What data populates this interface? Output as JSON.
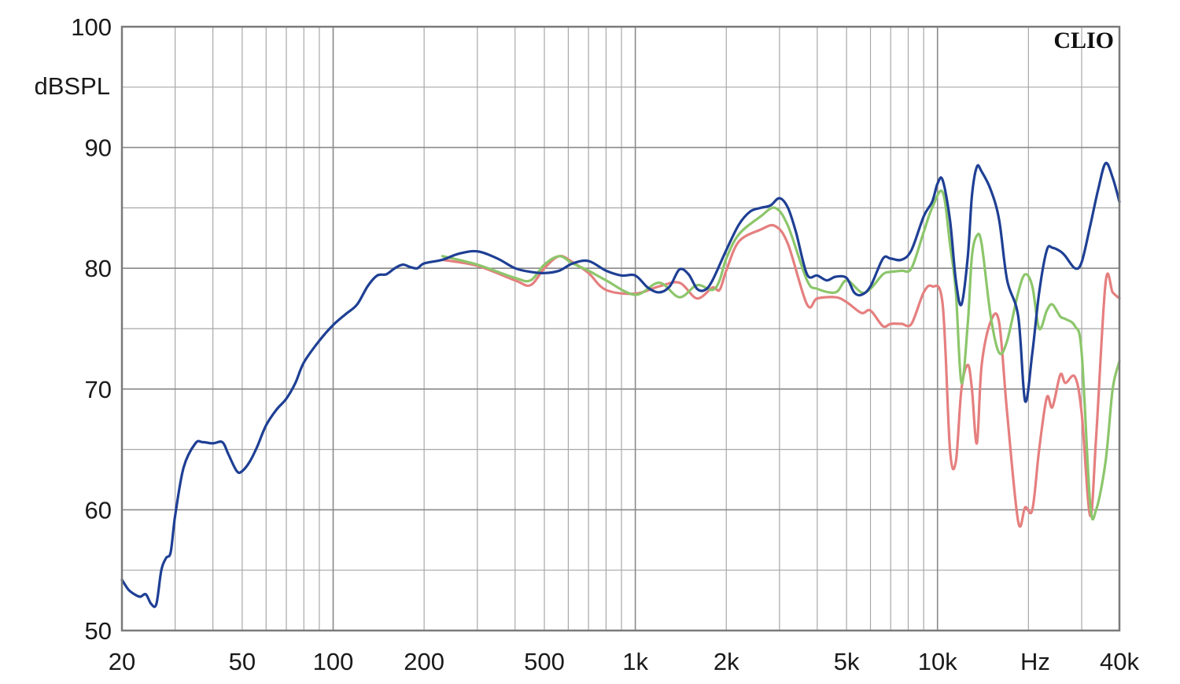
{
  "brand_label": "CLIO",
  "chart_data": {
    "type": "line",
    "title": "",
    "xlabel": "Hz",
    "ylabel": "dBSPL",
    "x_scale": "log",
    "xlim": [
      20,
      40000
    ],
    "ylim": [
      50,
      100
    ],
    "grid": true,
    "legend": "none",
    "x_ticks": [
      {
        "value": 20,
        "label": "20"
      },
      {
        "value": 50,
        "label": "50"
      },
      {
        "value": 100,
        "label": "100"
      },
      {
        "value": 200,
        "label": "200"
      },
      {
        "value": 500,
        "label": "500"
      },
      {
        "value": 1000,
        "label": "1k"
      },
      {
        "value": 2000,
        "label": "2k"
      },
      {
        "value": 5000,
        "label": "5k"
      },
      {
        "value": 10000,
        "label": "10k"
      },
      {
        "value": 40000,
        "label": "40k"
      }
    ],
    "y_ticks": [
      {
        "value": 50,
        "label": "50"
      },
      {
        "value": 60,
        "label": "60"
      },
      {
        "value": 70,
        "label": "70"
      },
      {
        "value": 80,
        "label": "80"
      },
      {
        "value": 90,
        "label": "90"
      },
      {
        "value": 100,
        "label": "100"
      }
    ],
    "series": [
      {
        "color": "#e57f7f",
        "x": [
          230,
          300,
          400,
          450,
          500,
          560,
          620,
          700,
          800,
          1000,
          1200,
          1400,
          1600,
          1800,
          1900,
          2000,
          2200,
          2600,
          2900,
          3200,
          3700,
          4000,
          4600,
          5000,
          5600,
          6000,
          6600,
          7000,
          7600,
          8200,
          9000,
          9600,
          10400,
          11000,
          11500,
          12000,
          12600,
          13000,
          13500,
          14000,
          15000,
          16000,
          17000,
          18500,
          19500,
          20600,
          21700,
          23000,
          24000,
          25500,
          26500,
          28500,
          30000,
          32000,
          33500,
          36000,
          38000,
          40000
        ],
        "y": [
          80.7,
          80.2,
          79.0,
          78.6,
          80.0,
          81.0,
          80.5,
          79.6,
          78.2,
          77.9,
          78.5,
          78.8,
          77.5,
          78.4,
          78.2,
          79.8,
          82.2,
          83.2,
          83.5,
          82.0,
          77.0,
          77.5,
          77.6,
          77.2,
          76.3,
          76.5,
          75.2,
          75.4,
          75.4,
          75.4,
          78.0,
          78.5,
          77.0,
          65.0,
          64.0,
          70.0,
          72.0,
          70.0,
          65.5,
          72.0,
          75.6,
          75.5,
          68.0,
          59.0,
          60.2,
          60.0,
          65.0,
          69.3,
          68.5,
          71.2,
          70.5,
          71.0,
          68.0,
          59.5,
          66.0,
          78.8,
          78.0,
          77.5
        ]
      },
      {
        "color": "#8cc66b",
        "x": [
          230,
          300,
          400,
          450,
          500,
          560,
          620,
          700,
          800,
          1000,
          1200,
          1400,
          1600,
          1800,
          1900,
          2000,
          2200,
          2600,
          2900,
          3200,
          3700,
          4000,
          4600,
          5000,
          5600,
          6000,
          6600,
          7000,
          7600,
          8200,
          9000,
          9600,
          10400,
          11000,
          11500,
          12000,
          12600,
          13000,
          13500,
          14000,
          15000,
          16000,
          17000,
          18500,
          19500,
          20600,
          21700,
          23000,
          24000,
          25500,
          26500,
          28500,
          30000,
          32000,
          33500,
          36000,
          38000,
          40000
        ],
        "y": [
          81.0,
          80.3,
          79.2,
          79.0,
          80.3,
          81.0,
          80.4,
          79.8,
          79.0,
          77.8,
          78.8,
          77.6,
          78.6,
          78.2,
          79.0,
          80.8,
          82.8,
          84.3,
          85.0,
          83.5,
          79.0,
          78.3,
          78.0,
          79.0,
          78.0,
          78.3,
          79.5,
          79.7,
          79.8,
          80.0,
          83.0,
          85.0,
          86.3,
          82.0,
          78.0,
          70.5,
          75.5,
          81.0,
          82.7,
          82.0,
          76.0,
          73.0,
          74.0,
          78.0,
          79.5,
          78.5,
          75.0,
          76.5,
          77.0,
          76.0,
          75.8,
          75.2,
          73.0,
          60.5,
          60.0,
          64.0,
          70.0,
          72.3
        ]
      },
      {
        "color": "#1e3f94",
        "x": [
          20,
          21,
          22,
          23,
          24,
          25,
          26,
          27,
          28,
          29,
          30,
          32,
          35,
          37,
          40,
          43,
          45,
          48,
          50,
          53,
          56,
          60,
          65,
          70,
          75,
          80,
          90,
          100,
          110,
          120,
          130,
          140,
          150,
          160,
          170,
          180,
          190,
          200,
          230,
          260,
          300,
          350,
          400,
          450,
          500,
          560,
          620,
          700,
          800,
          900,
          1000,
          1100,
          1200,
          1300,
          1400,
          1500,
          1600,
          1700,
          1800,
          2000,
          2200,
          2400,
          2600,
          2800,
          3000,
          3200,
          3400,
          3700,
          4000,
          4300,
          4600,
          5000,
          5300,
          5600,
          6000,
          6600,
          7000,
          7600,
          8200,
          9000,
          9600,
          10000,
          10400,
          11000,
          11500,
          12000,
          12600,
          13000,
          13500,
          14000,
          15000,
          16000,
          17000,
          18500,
          19500,
          20600,
          21700,
          23000,
          24000,
          25500,
          26500,
          28500,
          30000,
          32000,
          34000,
          36000,
          38000,
          40000
        ],
        "y": [
          54.2,
          53.4,
          53.0,
          52.8,
          53.0,
          52.2,
          52.2,
          55.0,
          56.0,
          56.5,
          59.5,
          63.5,
          65.5,
          65.6,
          65.5,
          65.6,
          64.6,
          63.2,
          63.2,
          64.0,
          65.2,
          67.0,
          68.3,
          69.2,
          70.5,
          72.2,
          74.0,
          75.3,
          76.2,
          77.0,
          78.5,
          79.4,
          79.5,
          80.0,
          80.3,
          80.1,
          80.0,
          80.4,
          80.7,
          81.2,
          81.4,
          80.8,
          80.0,
          79.7,
          79.6,
          79.8,
          80.4,
          80.6,
          79.8,
          79.4,
          79.4,
          78.4,
          78.0,
          78.5,
          79.9,
          79.5,
          78.3,
          78.2,
          79.0,
          81.5,
          83.6,
          84.7,
          85.0,
          85.2,
          85.8,
          85.0,
          83.0,
          79.5,
          79.4,
          79.0,
          79.3,
          79.2,
          78.0,
          77.8,
          78.5,
          80.8,
          80.8,
          80.7,
          81.5,
          84.3,
          85.5,
          87.0,
          87.3,
          84.0,
          79.0,
          77.0,
          81.0,
          86.0,
          88.4,
          88.0,
          86.5,
          84.0,
          79.0,
          76.0,
          69.0,
          73.0,
          78.0,
          81.5,
          81.7,
          81.4,
          81.0,
          80.0,
          80.5,
          83.5,
          86.5,
          88.7,
          87.5,
          85.5
        ]
      }
    ]
  }
}
